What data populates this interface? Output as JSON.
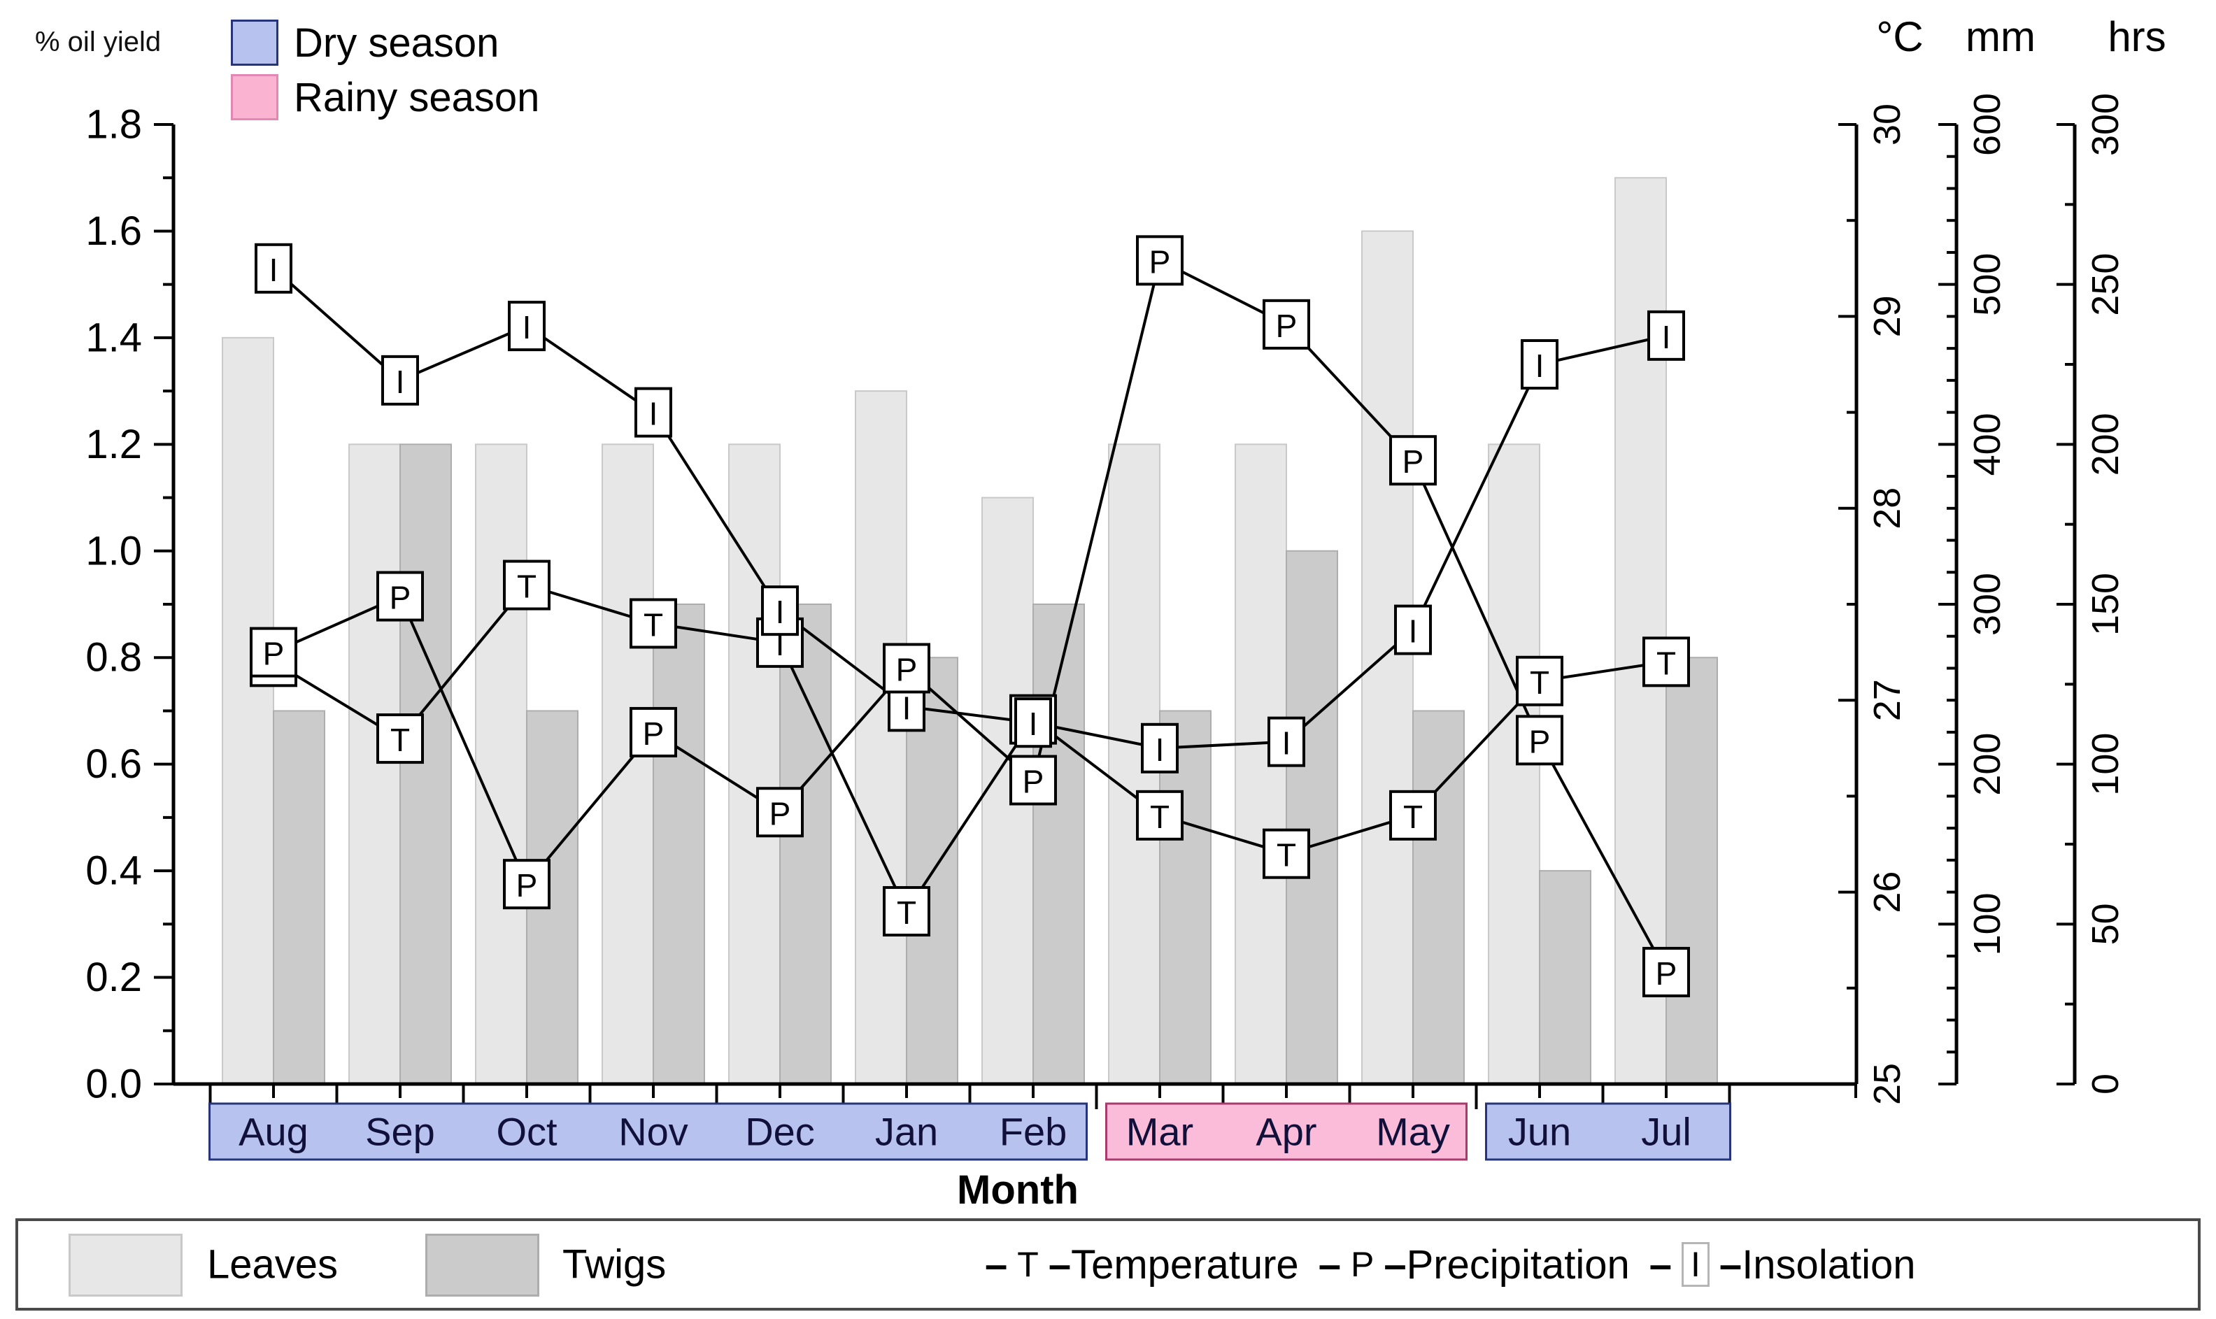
{
  "labels": {
    "left_axis_title": "% oil yield",
    "x_axis_title": "Month",
    "unit_celsius": "°C",
    "unit_mm": "mm",
    "unit_hrs": "hrs"
  },
  "season_legend": [
    {
      "label": "Dry season",
      "color": "#b7c2ee",
      "border": "#26357a"
    },
    {
      "label": "Rainy season",
      "color": "#fbb3d2",
      "border": "#e387b4"
    }
  ],
  "bottom_legend": {
    "leaves_label": "Leaves",
    "twigs_label": "Twigs",
    "dash": "–",
    "line_items": [
      {
        "symbol": "T",
        "label": "Temperature",
        "boxed": false
      },
      {
        "symbol": "P",
        "label": "Precipitation",
        "boxed": false
      },
      {
        "symbol": "I",
        "label": "Insolation",
        "boxed": true
      }
    ]
  },
  "chart_data": {
    "type": "bar",
    "subtype": "bars-plus-marker-lines",
    "months": [
      "Aug",
      "Sep",
      "Oct",
      "Nov",
      "Dec",
      "Jan",
      "Feb",
      "Mar",
      "Apr",
      "May",
      "Jun",
      "Jul"
    ],
    "left_axis": {
      "label": "% oil yield",
      "min": 0.0,
      "max": 1.8,
      "major_step": 0.2,
      "minor_step": 0.1
    },
    "series_bars": [
      {
        "name": "Leaves",
        "color": "#e7e7e7",
        "edge": "#c9c9c9",
        "values": [
          1.4,
          1.2,
          1.2,
          1.2,
          1.2,
          1.3,
          1.1,
          1.2,
          1.2,
          1.6,
          1.2,
          1.7
        ]
      },
      {
        "name": "Twigs",
        "color": "#cbcbcb",
        "edge": "#adadad",
        "values": [
          0.7,
          1.2,
          0.7,
          0.9,
          0.9,
          0.8,
          0.9,
          0.7,
          1.0,
          0.7,
          0.4,
          0.8
        ]
      }
    ],
    "series_lines": [
      {
        "name": "Temperature",
        "symbol": "T",
        "unit": "°C",
        "axis": "celsius",
        "values": [
          27.2,
          26.8,
          27.6,
          27.4,
          27.3,
          25.9,
          26.9,
          26.4,
          26.2,
          26.4,
          27.1,
          27.2
        ]
      },
      {
        "name": "Insolation",
        "symbol": "I",
        "unit": "hrs",
        "axis": "hours",
        "values": [
          255,
          220,
          237,
          210,
          148,
          118,
          113,
          105,
          107,
          142,
          225,
          234
        ]
      },
      {
        "name": "Precipitation",
        "symbol": "P",
        "unit": "mm",
        "axis": "millimeters",
        "values": [
          270,
          305,
          125,
          220,
          170,
          260,
          190,
          515,
          475,
          390,
          215,
          70
        ]
      }
    ],
    "right_axes": [
      {
        "id": "celsius",
        "unit": "°C",
        "min": 25,
        "max": 30,
        "major_step": 1,
        "minor_step": 0.5,
        "tick_labels": [
          "25",
          "26",
          "27",
          "28",
          "29",
          "30"
        ]
      },
      {
        "id": "millimeters",
        "unit": "mm",
        "min": 0,
        "max": 600,
        "major_step": 100,
        "minor_step": 20,
        "tick_labels": [
          "100",
          "200",
          "300",
          "400",
          "500",
          "600"
        ]
      },
      {
        "id": "hours",
        "unit": "hrs",
        "min": 0,
        "max": 300,
        "major_step": 50,
        "minor_step": 25,
        "tick_labels": [
          "0",
          "50",
          "100",
          "150",
          "200",
          "250",
          "300"
        ]
      }
    ],
    "season_bands": [
      {
        "label": "Dry season",
        "type": "dry",
        "from": 0,
        "to": 6
      },
      {
        "label": "Rainy season",
        "type": "rainy",
        "from": 7,
        "to": 9
      },
      {
        "label": "Dry season",
        "type": "dry",
        "from": 10,
        "to": 11
      }
    ],
    "band_colors": {
      "dry": {
        "fill": "#b7c2ee",
        "border": "#26357a"
      },
      "rainy": {
        "fill": "#fbbcd9",
        "border": "#a83a6e"
      }
    },
    "xlabel": "Month",
    "legend_position": "bottom",
    "grid": false
  }
}
